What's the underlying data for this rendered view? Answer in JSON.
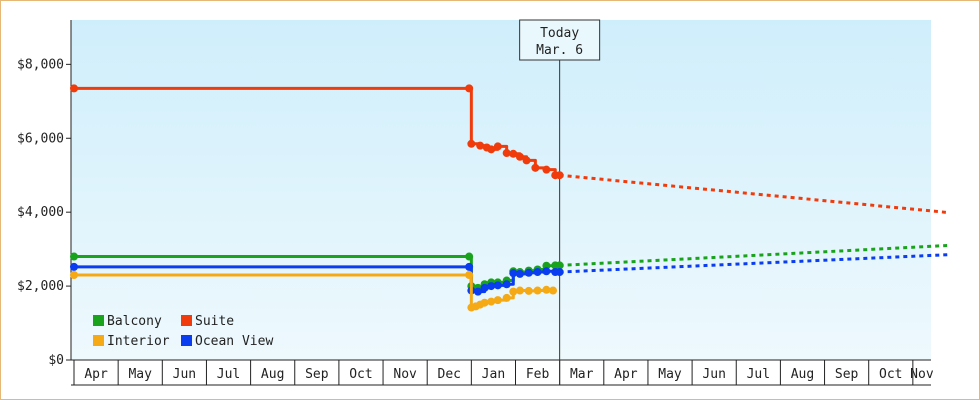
{
  "chart_data": {
    "type": "line",
    "ylim": [
      0,
      9200
    ],
    "y_ticks": [
      {
        "value": 0,
        "label": "$0"
      },
      {
        "value": 2000,
        "label": "$2,000"
      },
      {
        "value": 4000,
        "label": "$4,000"
      },
      {
        "value": 6000,
        "label": "$6,000"
      },
      {
        "value": 8000,
        "label": "$8,000"
      }
    ],
    "month_labels": [
      "Apr",
      "May",
      "Jun",
      "Jul",
      "Aug",
      "Sep",
      "Oct",
      "Nov",
      "Dec",
      "Jan",
      "Feb",
      "Mar",
      "Apr",
      "May",
      "Jun",
      "Jul",
      "Aug",
      "Sep",
      "Oct",
      "Nov"
    ],
    "today_marker": {
      "line1": "Today",
      "line2": "Mar. 6",
      "month_pos": 11.0
    },
    "legend": [
      {
        "name": "Balcony",
        "color": "#19a31c"
      },
      {
        "name": "Suite",
        "color": "#f03c0c"
      },
      {
        "name": "Interior",
        "color": "#f5a915"
      },
      {
        "name": "Ocean View",
        "color": "#0a3cf0"
      }
    ],
    "legend_placement": "bottom-left",
    "series": [
      {
        "name": "Suite",
        "color": "#f03c0c",
        "x": [
          0.0,
          8.95,
          9.0,
          9.2,
          9.35,
          9.45,
          9.6,
          9.8,
          9.95,
          10.1,
          10.25,
          10.45,
          10.7,
          10.9,
          11.0
        ],
        "y": [
          7350,
          7350,
          5850,
          5800,
          5750,
          5700,
          5780,
          5600,
          5580,
          5500,
          5400,
          5200,
          5150,
          5000,
          5000
        ],
        "forecast": {
          "x": [
            11.0,
            19.8
          ],
          "y": [
            5000,
            3990
          ]
        }
      },
      {
        "name": "Balcony",
        "color": "#19a31c",
        "x": [
          0.0,
          8.95,
          9.0,
          9.15,
          9.3,
          9.45,
          9.6,
          9.8,
          9.95,
          10.1,
          10.3,
          10.5,
          10.7,
          10.9,
          11.0
        ],
        "y": [
          2800,
          2800,
          2000,
          1950,
          2050,
          2100,
          2100,
          2150,
          2400,
          2380,
          2420,
          2450,
          2550,
          2560,
          2560
        ],
        "forecast": {
          "x": [
            11.0,
            19.8
          ],
          "y": [
            2560,
            3100
          ]
        }
      },
      {
        "name": "Ocean View",
        "color": "#0a3cf0",
        "x": [
          0.0,
          8.95,
          9.0,
          9.15,
          9.3,
          9.45,
          9.6,
          9.8,
          9.95,
          10.1,
          10.3,
          10.5,
          10.7,
          10.9,
          11.0
        ],
        "y": [
          2520,
          2520,
          1880,
          1850,
          1950,
          2000,
          2020,
          2050,
          2350,
          2330,
          2360,
          2380,
          2400,
          2380,
          2380
        ],
        "forecast": {
          "x": [
            11.0,
            19.8
          ],
          "y": [
            2380,
            2850
          ]
        }
      },
      {
        "name": "Interior",
        "color": "#f5a915",
        "x": [
          0.0,
          8.95,
          9.0,
          9.1,
          9.2,
          9.3,
          9.45,
          9.6,
          9.8,
          9.95,
          10.1,
          10.3,
          10.5,
          10.7,
          10.85
        ],
        "y": [
          2300,
          2300,
          1420,
          1450,
          1500,
          1550,
          1580,
          1620,
          1680,
          1850,
          1880,
          1870,
          1880,
          1900,
          1880
        ],
        "forecast": null
      }
    ]
  }
}
